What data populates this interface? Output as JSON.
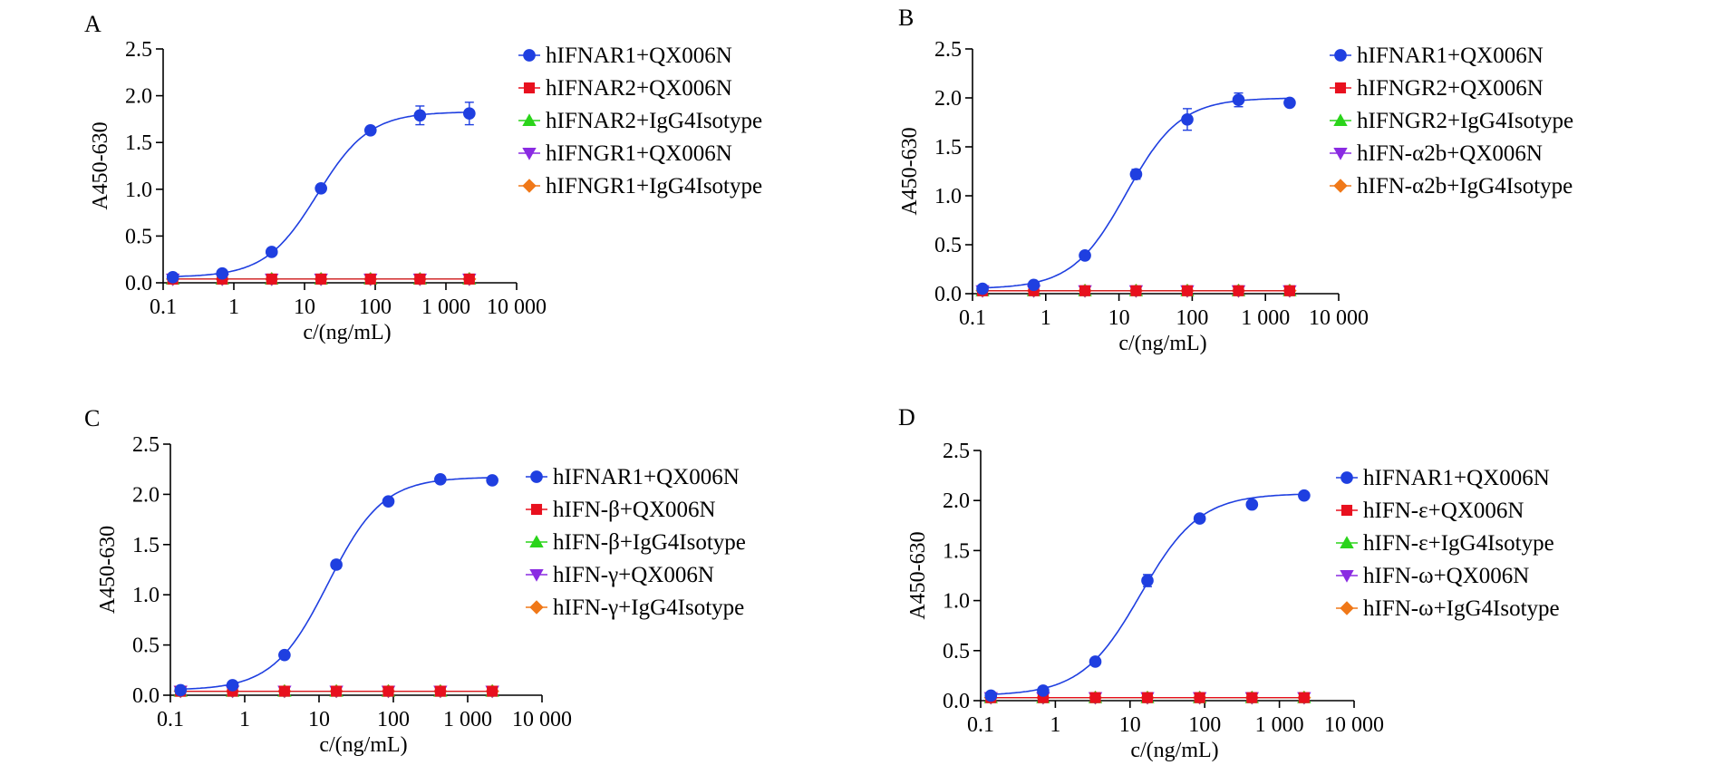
{
  "chart_data": [
    {
      "type": "line",
      "panel_label": "A",
      "xlabel": "c/(ng/mL)",
      "ylabel": "A450-630",
      "xscale": "log",
      "xlim": [
        0.1,
        10000
      ],
      "ylim": [
        0,
        2.5
      ],
      "xticks": [
        "0.1",
        "1",
        "10",
        "100",
        "1 000",
        "10 000"
      ],
      "yticks": [
        "0.0",
        "0.5",
        "1.0",
        "1.5",
        "2.0",
        "2.5"
      ],
      "x": [
        0.137,
        0.686,
        3.43,
        17.1,
        85.7,
        429,
        2143
      ],
      "legend_position": "right",
      "series": [
        {
          "name": "hIFNAR1+QX006N",
          "color": "#1f3fe0",
          "marker": "circle",
          "values": [
            0.06,
            0.1,
            0.33,
            1.01,
            1.63,
            1.79,
            1.81
          ],
          "errors": [
            0.01,
            0.02,
            0.02,
            0.02,
            0.02,
            0.1,
            0.12
          ]
        },
        {
          "name": "hIFNAR2+QX006N",
          "color": "#e8101e",
          "marker": "square",
          "values": [
            0.04,
            0.04,
            0.04,
            0.04,
            0.04,
            0.04,
            0.04
          ]
        },
        {
          "name": "hIFNAR2+IgG4Isotype",
          "color": "#2ad41a",
          "marker": "triangle-up",
          "values": [
            0.04,
            0.04,
            0.04,
            0.04,
            0.04,
            0.04,
            0.04
          ]
        },
        {
          "name": "hIFNGR1+QX006N",
          "color": "#8a2be2",
          "marker": "triangle-down",
          "values": [
            0.04,
            0.04,
            0.04,
            0.04,
            0.04,
            0.04,
            0.04
          ]
        },
        {
          "name": "hIFNGR1+IgG4Isotype",
          "color": "#f07818",
          "marker": "diamond",
          "values": [
            0.04,
            0.04,
            0.04,
            0.04,
            0.04,
            0.04,
            0.04
          ]
        }
      ]
    },
    {
      "type": "line",
      "panel_label": "B",
      "xlabel": "c/(ng/mL)",
      "ylabel": "A450-630",
      "xscale": "log",
      "xlim": [
        0.1,
        10000
      ],
      "ylim": [
        0,
        2.5
      ],
      "xticks": [
        "0.1",
        "1",
        "10",
        "100",
        "1 000",
        "10 000"
      ],
      "yticks": [
        "0.0",
        "0.5",
        "1.0",
        "1.5",
        "2.0",
        "2.5"
      ],
      "x": [
        0.137,
        0.686,
        3.43,
        17.1,
        85.7,
        429,
        2143
      ],
      "legend_position": "right",
      "series": [
        {
          "name": "hIFNAR1+QX006N",
          "color": "#1f3fe0",
          "marker": "circle",
          "values": [
            0.05,
            0.09,
            0.39,
            1.22,
            1.78,
            1.98,
            1.95
          ],
          "errors": [
            0.01,
            0.02,
            0.02,
            0.05,
            0.11,
            0.07,
            0.02
          ]
        },
        {
          "name": "hIFNGR2+QX006N",
          "color": "#e8101e",
          "marker": "square",
          "values": [
            0.03,
            0.03,
            0.03,
            0.03,
            0.03,
            0.03,
            0.03
          ]
        },
        {
          "name": "hIFNGR2+IgG4Isotype",
          "color": "#2ad41a",
          "marker": "triangle-up",
          "values": [
            0.03,
            0.03,
            0.03,
            0.03,
            0.03,
            0.03,
            0.03
          ]
        },
        {
          "name": "hIFN-α2b+QX006N",
          "color": "#8a2be2",
          "marker": "triangle-down",
          "values": [
            0.03,
            0.03,
            0.03,
            0.03,
            0.03,
            0.03,
            0.03
          ]
        },
        {
          "name": "hIFN-α2b+IgG4Isotype",
          "color": "#f07818",
          "marker": "diamond",
          "values": [
            0.03,
            0.03,
            0.03,
            0.03,
            0.03,
            0.03,
            0.03
          ]
        }
      ]
    },
    {
      "type": "line",
      "panel_label": "C",
      "xlabel": "c/(ng/mL)",
      "ylabel": "A450-630",
      "xscale": "log",
      "xlim": [
        0.1,
        10000
      ],
      "ylim": [
        0,
        2.5
      ],
      "xticks": [
        "0.1",
        "1",
        "10",
        "100",
        "1 000",
        "10 000"
      ],
      "yticks": [
        "0.0",
        "0.5",
        "1.0",
        "1.5",
        "2.0",
        "2.5"
      ],
      "x": [
        0.137,
        0.686,
        3.43,
        17.1,
        85.7,
        429,
        2143
      ],
      "legend_position": "right",
      "series": [
        {
          "name": "hIFNAR1+QX006N",
          "color": "#1f3fe0",
          "marker": "circle",
          "values": [
            0.05,
            0.1,
            0.4,
            1.3,
            1.93,
            2.15,
            2.14
          ],
          "errors": [
            0.01,
            0.02,
            0.02,
            0.04,
            0.03,
            0.02,
            0.02
          ]
        },
        {
          "name": "hIFN-β+QX006N",
          "color": "#e8101e",
          "marker": "square",
          "values": [
            0.04,
            0.04,
            0.04,
            0.04,
            0.04,
            0.04,
            0.04
          ]
        },
        {
          "name": "hIFN-β+IgG4Isotype",
          "color": "#2ad41a",
          "marker": "triangle-up",
          "values": [
            0.04,
            0.04,
            0.04,
            0.04,
            0.04,
            0.04,
            0.04
          ]
        },
        {
          "name": "hIFN-γ+QX006N",
          "color": "#8a2be2",
          "marker": "triangle-down",
          "values": [
            0.04,
            0.04,
            0.04,
            0.04,
            0.04,
            0.04,
            0.04
          ]
        },
        {
          "name": "hIFN-γ+IgG4Isotype",
          "color": "#f07818",
          "marker": "diamond",
          "values": [
            0.04,
            0.04,
            0.04,
            0.04,
            0.04,
            0.04,
            0.04
          ]
        }
      ]
    },
    {
      "type": "line",
      "panel_label": "D",
      "xlabel": "c/(ng/mL)",
      "ylabel": "A450-630",
      "xscale": "log",
      "xlim": [
        0.1,
        10000
      ],
      "ylim": [
        0,
        2.5
      ],
      "xticks": [
        "0.1",
        "1",
        "10",
        "100",
        "1 000",
        "10 000"
      ],
      "yticks": [
        "0.0",
        "0.5",
        "1.0",
        "1.5",
        "2.0",
        "2.5"
      ],
      "x": [
        0.137,
        0.686,
        3.43,
        17.1,
        85.7,
        429,
        2143
      ],
      "legend_position": "right",
      "series": [
        {
          "name": "hIFNAR1+QX006N",
          "color": "#1f3fe0",
          "marker": "circle",
          "values": [
            0.05,
            0.1,
            0.39,
            1.2,
            1.82,
            1.96,
            2.05
          ],
          "errors": [
            0.01,
            0.02,
            0.02,
            0.06,
            0.03,
            0.02,
            0.02
          ]
        },
        {
          "name": "hIFN-ε+QX006N",
          "color": "#e8101e",
          "marker": "square",
          "values": [
            0.03,
            0.03,
            0.03,
            0.03,
            0.03,
            0.03,
            0.03
          ]
        },
        {
          "name": "hIFN-ε+IgG4Isotype",
          "color": "#2ad41a",
          "marker": "triangle-up",
          "values": [
            0.03,
            0.03,
            0.03,
            0.03,
            0.03,
            0.03,
            0.03
          ]
        },
        {
          "name": "hIFN-ω+QX006N",
          "color": "#8a2be2",
          "marker": "triangle-down",
          "values": [
            0.03,
            0.03,
            0.03,
            0.03,
            0.03,
            0.03,
            0.03
          ]
        },
        {
          "name": "hIFN-ω+IgG4Isotype",
          "color": "#f07818",
          "marker": "diamond",
          "values": [
            0.03,
            0.03,
            0.03,
            0.03,
            0.03,
            0.03,
            0.03
          ]
        }
      ]
    }
  ]
}
